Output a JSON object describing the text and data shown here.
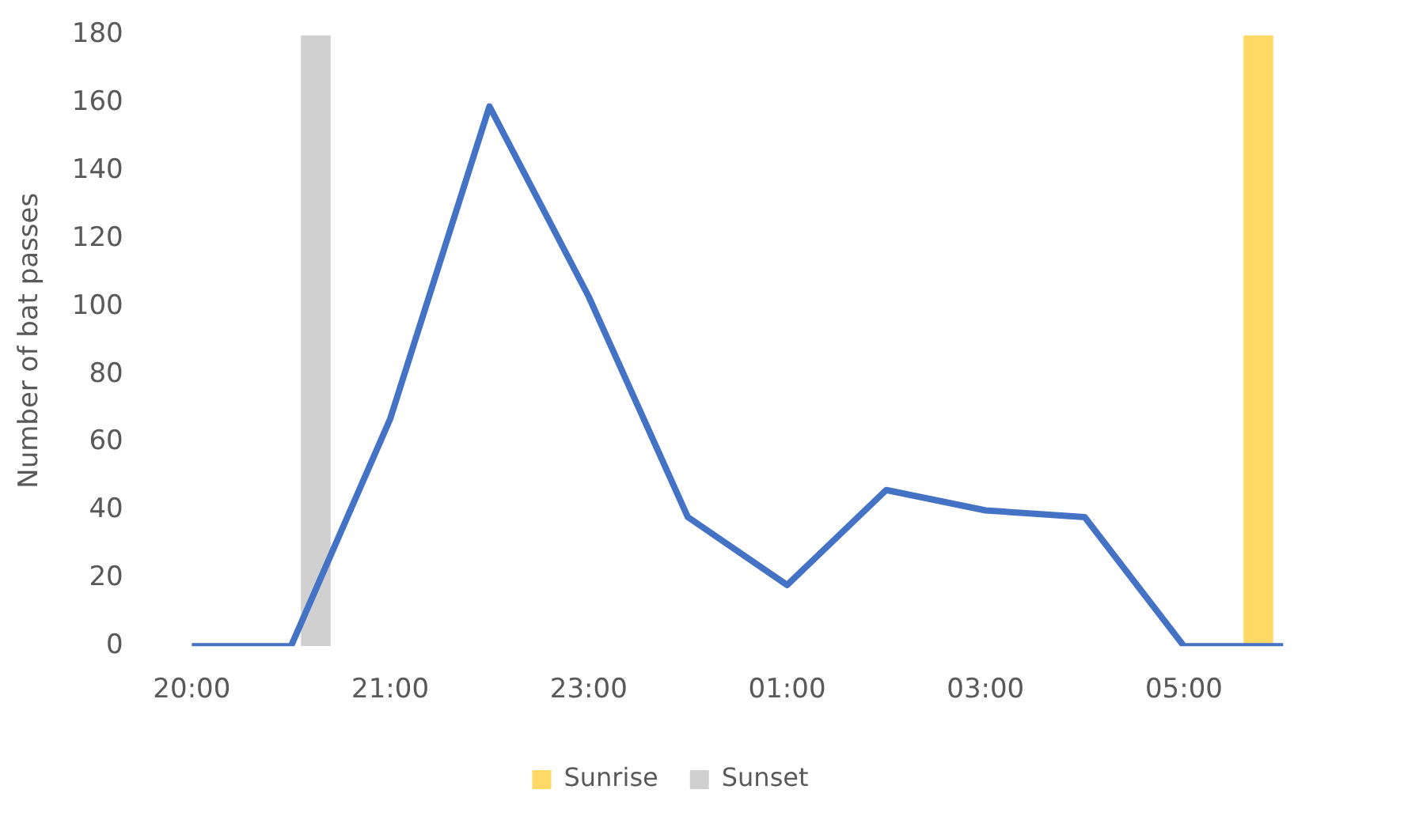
{
  "chart_data": {
    "type": "line",
    "ylabel": "Number of bat passes",
    "categories": [
      "20:00",
      null,
      "21:00",
      null,
      "23:00",
      null,
      "01:00",
      null,
      "03:00",
      null,
      "05:00",
      null
    ],
    "series": [
      {
        "type": "bar",
        "name": "Sunrise",
        "color": "#ffd966",
        "values": [
          null,
          null,
          null,
          null,
          null,
          null,
          null,
          null,
          null,
          null,
          null,
          180
        ]
      },
      {
        "type": "bar",
        "name": "Sunset",
        "color": "#d0d0d0",
        "values": [
          null,
          180,
          null,
          null,
          null,
          null,
          null,
          null,
          null,
          null,
          null,
          null
        ]
      },
      {
        "color": "#4472c4",
        "values": [
          0,
          0,
          67,
          159,
          103,
          38,
          18,
          46,
          40,
          38,
          0,
          0
        ]
      }
    ],
    "ylim": [
      0,
      180
    ],
    "yticks": [
      0,
      20,
      40,
      60,
      80,
      100,
      120,
      140,
      160,
      180
    ],
    "grid": false,
    "legend": "bottom",
    "marker": "none"
  }
}
